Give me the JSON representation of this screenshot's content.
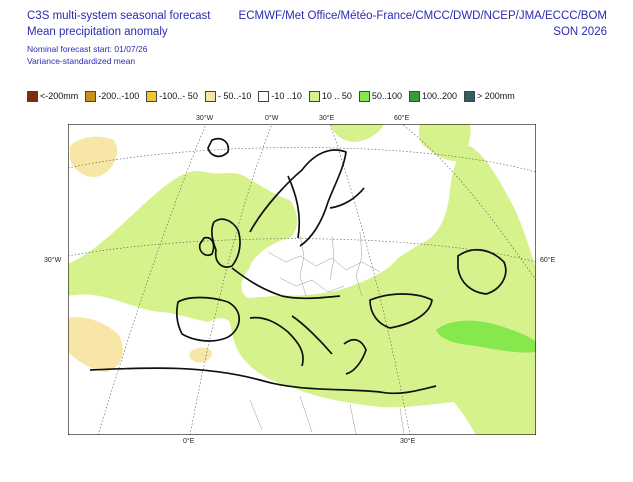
{
  "header": {
    "title_line1": "C3S multi-system seasonal forecast",
    "title_line2": "Mean precipitation anomaly",
    "nominal_start": "Nominal forecast start: 01/07/26",
    "method": "Variance-standardized mean",
    "centres": "ECMWF/Met Office/Météo-France/CMCC/DWD/NCEP/JMA/ECCC/BOM",
    "season": "SON 2026"
  },
  "legend": [
    {
      "label": "<-200mm",
      "color": "#7a2e0e"
    },
    {
      "label": "-200..-100",
      "color": "#c8911c"
    },
    {
      "label": "-100..- 50",
      "color": "#f2c531"
    },
    {
      "label": "- 50..-10",
      "color": "#f7e6a6"
    },
    {
      "label": "-10 ..10",
      "color": "#ffffff"
    },
    {
      "label": "10 .. 50",
      "color": "#d5f28c"
    },
    {
      "label": "50..100",
      "color": "#86e84c"
    },
    {
      "label": "100..200",
      "color": "#3c9a3c"
    },
    {
      "label": "> 200mm",
      "color": "#2f5f66"
    }
  ],
  "coords": {
    "top": [
      "30°W",
      "0°W",
      "30°E",
      "60°E"
    ],
    "left": "30°W",
    "right": "60°E",
    "bottom": [
      "0°E",
      "30°E"
    ]
  }
}
